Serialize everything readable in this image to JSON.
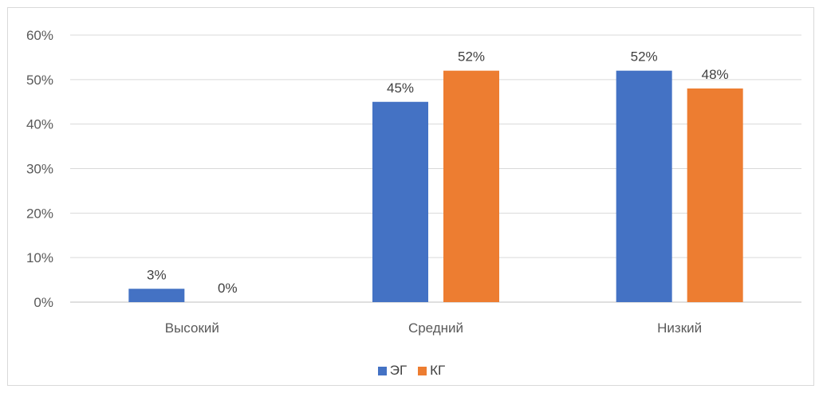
{
  "chart_data": {
    "type": "bar",
    "title": "",
    "categories": [
      "Высокий",
      "Средний",
      "Низкий"
    ],
    "series": [
      {
        "name": "ЭГ",
        "values": [
          3,
          45,
          52
        ],
        "color": "#4472c4"
      },
      {
        "name": "КГ",
        "values": [
          0,
          52,
          48
        ],
        "color": "#ed7d31"
      }
    ],
    "ylim": [
      0,
      60
    ],
    "yticks": [
      "0%",
      "10%",
      "20%",
      "30%",
      "40%",
      "50%",
      "60%"
    ],
    "value_suffix": "%",
    "grid": true,
    "legend_position": "bottom"
  }
}
